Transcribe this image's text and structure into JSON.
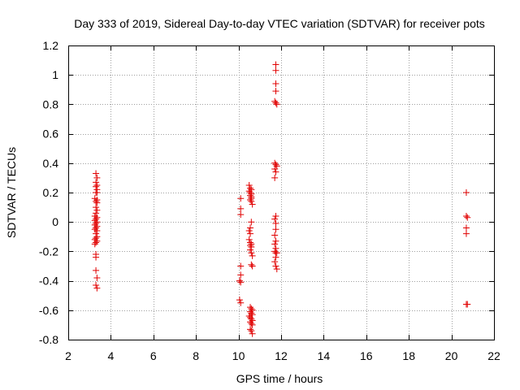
{
  "chart_data": {
    "type": "scatter",
    "title": "Day 333 of 2019, Sidereal Day-to-day VTEC variation (SDTVAR) for receiver pots",
    "xlabel": "GPS time / hours",
    "ylabel": "SDTVAR / TECUs",
    "xlim": [
      2,
      22
    ],
    "ylim": [
      -0.8,
      1.2
    ],
    "xticks": [
      2,
      4,
      6,
      8,
      10,
      12,
      14,
      16,
      18,
      20,
      22
    ],
    "xtick_labels": [
      "2",
      "4",
      "6",
      "8",
      "10",
      "12",
      "14",
      "16",
      "18",
      "20",
      "22"
    ],
    "yticks": [
      -0.8,
      -0.6,
      -0.4,
      -0.2,
      0,
      0.2,
      0.4,
      0.6,
      0.8,
      1,
      1.2
    ],
    "ytick_labels": [
      "-0.8",
      "-0.6",
      "-0.4",
      "-0.2",
      "0",
      "0.2",
      "0.4",
      "0.6",
      "0.8",
      "1",
      "1.2"
    ],
    "grid": true,
    "marker": "+",
    "color": "#e00000",
    "series": [
      {
        "name": "SDTVAR",
        "points": [
          [
            3.3,
            0.33
          ],
          [
            3.35,
            0.3
          ],
          [
            3.3,
            0.27
          ],
          [
            3.35,
            0.25
          ],
          [
            3.3,
            0.24
          ],
          [
            3.35,
            0.22
          ],
          [
            3.3,
            0.2
          ],
          [
            3.35,
            0.2
          ],
          [
            3.25,
            0.16
          ],
          [
            3.35,
            0.15
          ],
          [
            3.3,
            0.14
          ],
          [
            3.35,
            0.13
          ],
          [
            3.3,
            0.1
          ],
          [
            3.35,
            0.08
          ],
          [
            3.3,
            0.06
          ],
          [
            3.25,
            0.04
          ],
          [
            3.35,
            0.03
          ],
          [
            3.3,
            0.02
          ],
          [
            3.25,
            0.01
          ],
          [
            3.35,
            0.0
          ],
          [
            3.3,
            -0.01
          ],
          [
            3.25,
            -0.02
          ],
          [
            3.35,
            -0.03
          ],
          [
            3.3,
            -0.04
          ],
          [
            3.25,
            -0.05
          ],
          [
            3.35,
            -0.06
          ],
          [
            3.3,
            -0.08
          ],
          [
            3.35,
            -0.1
          ],
          [
            3.3,
            -0.11
          ],
          [
            3.25,
            -0.12
          ],
          [
            3.35,
            -0.13
          ],
          [
            3.3,
            -0.14
          ],
          [
            3.25,
            -0.15
          ],
          [
            3.3,
            -0.22
          ],
          [
            3.3,
            -0.24
          ],
          [
            3.3,
            -0.33
          ],
          [
            3.35,
            -0.38
          ],
          [
            3.3,
            -0.43
          ],
          [
            3.35,
            -0.45
          ],
          [
            10.1,
            0.16
          ],
          [
            10.1,
            0.09
          ],
          [
            10.1,
            0.05
          ],
          [
            10.1,
            -0.3
          ],
          [
            10.1,
            -0.36
          ],
          [
            10.05,
            -0.4
          ],
          [
            10.1,
            -0.41
          ],
          [
            10.05,
            -0.53
          ],
          [
            10.1,
            -0.55
          ],
          [
            10.5,
            0.25
          ],
          [
            10.55,
            0.23
          ],
          [
            10.6,
            0.22
          ],
          [
            10.5,
            0.21
          ],
          [
            10.55,
            0.2
          ],
          [
            10.6,
            0.19
          ],
          [
            10.55,
            0.18
          ],
          [
            10.6,
            0.17
          ],
          [
            10.6,
            0.16
          ],
          [
            10.55,
            0.15
          ],
          [
            10.6,
            0.14
          ],
          [
            10.65,
            0.12
          ],
          [
            10.6,
            0.0
          ],
          [
            10.55,
            -0.04
          ],
          [
            10.5,
            -0.06
          ],
          [
            10.55,
            -0.08
          ],
          [
            10.5,
            -0.12
          ],
          [
            10.55,
            -0.14
          ],
          [
            10.6,
            -0.15
          ],
          [
            10.55,
            -0.16
          ],
          [
            10.6,
            -0.17
          ],
          [
            10.55,
            -0.19
          ],
          [
            10.6,
            -0.21
          ],
          [
            10.65,
            -0.23
          ],
          [
            10.6,
            -0.29
          ],
          [
            10.65,
            -0.3
          ],
          [
            10.55,
            -0.58
          ],
          [
            10.6,
            -0.59
          ],
          [
            10.65,
            -0.6
          ],
          [
            10.55,
            -0.61
          ],
          [
            10.6,
            -0.62
          ],
          [
            10.65,
            -0.63
          ],
          [
            10.5,
            -0.64
          ],
          [
            10.55,
            -0.65
          ],
          [
            10.6,
            -0.66
          ],
          [
            10.65,
            -0.67
          ],
          [
            10.55,
            -0.68
          ],
          [
            10.6,
            -0.69
          ],
          [
            10.65,
            -0.7
          ],
          [
            10.55,
            -0.73
          ],
          [
            10.6,
            -0.74
          ],
          [
            10.65,
            -0.76
          ],
          [
            11.75,
            1.07
          ],
          [
            11.75,
            1.03
          ],
          [
            11.75,
            0.94
          ],
          [
            11.75,
            0.89
          ],
          [
            11.7,
            0.82
          ],
          [
            11.75,
            0.81
          ],
          [
            11.8,
            0.8
          ],
          [
            11.7,
            0.4
          ],
          [
            11.75,
            0.39
          ],
          [
            11.8,
            0.38
          ],
          [
            11.7,
            0.36
          ],
          [
            11.75,
            0.34
          ],
          [
            11.7,
            0.3
          ],
          [
            11.75,
            0.04
          ],
          [
            11.7,
            0.02
          ],
          [
            11.75,
            -0.01
          ],
          [
            11.75,
            -0.05
          ],
          [
            11.7,
            -0.09
          ],
          [
            11.75,
            -0.13
          ],
          [
            11.7,
            -0.15
          ],
          [
            11.75,
            -0.18
          ],
          [
            11.7,
            -0.2
          ],
          [
            11.75,
            -0.21
          ],
          [
            11.8,
            -0.21
          ],
          [
            11.75,
            -0.24
          ],
          [
            11.7,
            -0.27
          ],
          [
            11.75,
            -0.3
          ],
          [
            11.8,
            -0.32
          ],
          [
            20.7,
            0.2
          ],
          [
            20.7,
            0.04
          ],
          [
            20.75,
            0.03
          ],
          [
            20.7,
            -0.04
          ],
          [
            20.7,
            -0.08
          ],
          [
            20.7,
            -0.56
          ],
          [
            20.75,
            -0.56
          ]
        ]
      }
    ]
  }
}
